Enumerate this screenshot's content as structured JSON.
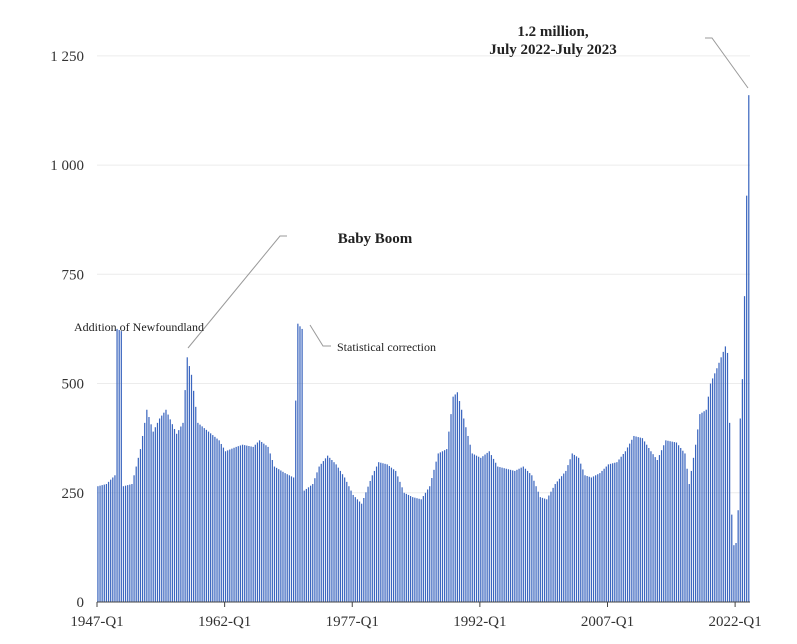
{
  "chart_data": {
    "type": "bar",
    "title": "",
    "xlabel": "",
    "ylabel": "",
    "ylim": [
      0,
      1300
    ],
    "grid": true,
    "bar_color": "#3b66bf",
    "y_ticks": [
      {
        "value": 0,
        "label": "0"
      },
      {
        "value": 250,
        "label": "250"
      },
      {
        "value": 500,
        "label": "500"
      },
      {
        "value": 750,
        "label": "750"
      },
      {
        "value": 1000,
        "label": "1 000"
      },
      {
        "value": 1250,
        "label": "1 250"
      }
    ],
    "x_ticks": [
      "1947-Q1",
      "1962-Q1",
      "1977-Q1",
      "1992-Q1",
      "2007-Q1",
      "2022-Q1"
    ],
    "x_start": "1947-Q1",
    "x_end": "2023-Q3",
    "x_tick_start_index": [
      0,
      60,
      120,
      180,
      240,
      300
    ],
    "anchors": [
      [
        "1947-Q1",
        265
      ],
      [
        "1948-Q1",
        270
      ],
      [
        "1949-Q1",
        290
      ],
      [
        "1949-Q2",
        625
      ],
      [
        "1949-Q4",
        620
      ],
      [
        "1950-Q1",
        265
      ],
      [
        "1951-Q1",
        270
      ],
      [
        "1952-Q1",
        350
      ],
      [
        "1952-Q4",
        440
      ],
      [
        "1953-Q3",
        390
      ],
      [
        "1954-Q2",
        420
      ],
      [
        "1955-Q1",
        440
      ],
      [
        "1956-Q2",
        385
      ],
      [
        "1957-Q1",
        410
      ],
      [
        "1957-Q3",
        560
      ],
      [
        "1958-Q1",
        520
      ],
      [
        "1958-Q4",
        410
      ],
      [
        "1960-Q1",
        390
      ],
      [
        "1961-Q2",
        370
      ],
      [
        "1962-Q1",
        345
      ],
      [
        "1963-Q2",
        355
      ],
      [
        "1964-Q1",
        360
      ],
      [
        "1965-Q2",
        355
      ],
      [
        "1966-Q1",
        370
      ],
      [
        "1967-Q1",
        355
      ],
      [
        "1967-Q4",
        310
      ],
      [
        "1969-Q1",
        295
      ],
      [
        "1970-Q1",
        285
      ],
      [
        "1970-Q3",
        637
      ],
      [
        "1971-Q1",
        625
      ],
      [
        "1971-Q2",
        255
      ],
      [
        "1972-Q2",
        270
      ],
      [
        "1973-Q1",
        310
      ],
      [
        "1974-Q1",
        335
      ],
      [
        "1975-Q1",
        315
      ],
      [
        "1976-Q1",
        285
      ],
      [
        "1977-Q1",
        245
      ],
      [
        "1978-Q1",
        225
      ],
      [
        "1979-Q2",
        290
      ],
      [
        "1980-Q1",
        320
      ],
      [
        "1981-Q1",
        315
      ],
      [
        "1982-Q1",
        300
      ],
      [
        "1983-Q1",
        250
      ],
      [
        "1984-Q1",
        240
      ],
      [
        "1985-Q1",
        235
      ],
      [
        "1986-Q1",
        265
      ],
      [
        "1987-Q1",
        340
      ],
      [
        "1988-Q1",
        350
      ],
      [
        "1988-Q4",
        470
      ],
      [
        "1989-Q2",
        480
      ],
      [
        "1990-Q1",
        420
      ],
      [
        "1991-Q1",
        340
      ],
      [
        "1992-Q1",
        330
      ],
      [
        "1993-Q1",
        345
      ],
      [
        "1994-Q1",
        310
      ],
      [
        "1995-Q1",
        305
      ],
      [
        "1996-Q1",
        300
      ],
      [
        "1997-Q1",
        310
      ],
      [
        "1998-Q1",
        290
      ],
      [
        "1999-Q1",
        240
      ],
      [
        "1999-Q4",
        235
      ],
      [
        "2000-Q4",
        270
      ],
      [
        "2002-Q1",
        300
      ],
      [
        "2002-Q4",
        340
      ],
      [
        "2003-Q3",
        330
      ],
      [
        "2004-Q2",
        290
      ],
      [
        "2005-Q1",
        285
      ],
      [
        "2006-Q1",
        295
      ],
      [
        "2007-Q1",
        315
      ],
      [
        "2008-Q1",
        320
      ],
      [
        "2009-Q1",
        345
      ],
      [
        "2010-Q1",
        380
      ],
      [
        "2011-Q1",
        375
      ],
      [
        "2012-Q1",
        345
      ],
      [
        "2012-Q4",
        325
      ],
      [
        "2013-Q4",
        370
      ],
      [
        "2015-Q1",
        365
      ],
      [
        "2016-Q1",
        340
      ],
      [
        "2016-Q3",
        270
      ],
      [
        "2017-Q2",
        360
      ],
      [
        "2017-Q4",
        430
      ],
      [
        "2018-Q3",
        440
      ],
      [
        "2019-Q1",
        500
      ],
      [
        "2019-Q4",
        535
      ],
      [
        "2020-Q2",
        560
      ],
      [
        "2020-Q4",
        585
      ],
      [
        "2021-Q1",
        570
      ],
      [
        "2021-Q2",
        410
      ],
      [
        "2021-Q3",
        200
      ],
      [
        "2021-Q4",
        130
      ],
      [
        "2022-Q1",
        135
      ],
      [
        "2022-Q2",
        210
      ],
      [
        "2022-Q3",
        420
      ],
      [
        "2022-Q4",
        510
      ],
      [
        "2023-Q1",
        700
      ],
      [
        "2023-Q2",
        930
      ],
      [
        "2023-Q3",
        1160
      ]
    ],
    "annotations": [
      {
        "text": "1.2 million,",
        "line2": "July 2022-July 2023",
        "bold": true
      },
      {
        "text": "Baby Boom",
        "bold": true
      },
      {
        "text": "Addition of Newfoundland",
        "bold": false
      },
      {
        "text": "Statistical correction",
        "bold": false
      }
    ]
  }
}
